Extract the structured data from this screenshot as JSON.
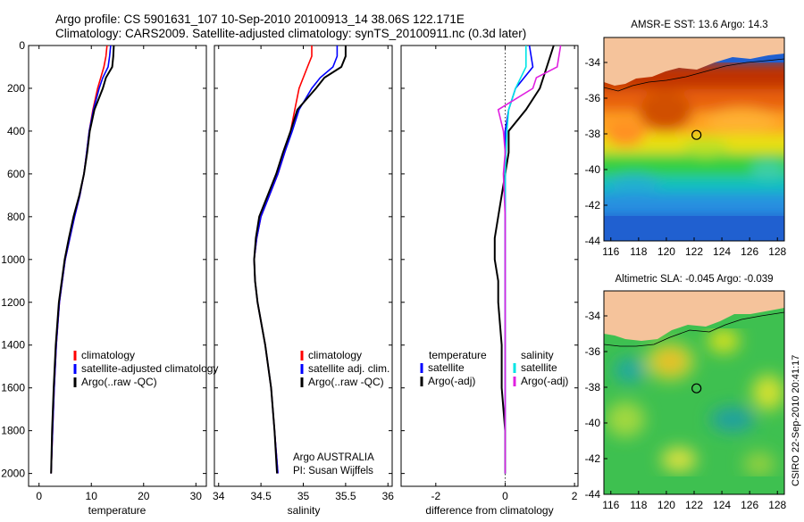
{
  "header": {
    "line1": "Argo profile: CS 5901631_107 10-Sep-2010 20100913_14 38.06S 122.171E",
    "line2": "Climatology: CARS2009. Satellite-adjusted climatology: synTS_20100911.nc (0.3d later)"
  },
  "footer_note": "CSIRO 22-Sep-2010 20:41:17",
  "colors": {
    "climatology": "#ff0000",
    "satellite": "#0000ff",
    "argo": "#000000",
    "satellite_salinity": "#00e5e5",
    "argo_adj_salinity": "#e020e0",
    "land": "#f5c39b"
  },
  "chart_data": [
    {
      "type": "line",
      "panel": "temperature",
      "xlabel": "temperature",
      "x_ticks": [
        0,
        10,
        20,
        30
      ],
      "xlim": [
        -2,
        32
      ],
      "y_ticks": [
        0,
        200,
        400,
        600,
        800,
        1000,
        1200,
        1400,
        1600,
        1800,
        2000
      ],
      "ylim": [
        2060,
        0
      ],
      "legend": [
        "climatology",
        "satellite-adjusted climatology",
        "Argo(..raw -QC)"
      ],
      "series": [
        {
          "name": "climatology",
          "color": "#ff0000",
          "depth": [
            0,
            50,
            100,
            150,
            200,
            300,
            400,
            500,
            600,
            700,
            800,
            900,
            1000,
            1200,
            1400,
            1600,
            1800,
            2000
          ],
          "values": [
            13,
            12.8,
            12.4,
            11.8,
            11.2,
            10.3,
            9.6,
            9.1,
            8.6,
            7.8,
            6.8,
            5.9,
            5.0,
            3.9,
            3.3,
            2.9,
            2.6,
            2.3
          ]
        },
        {
          "name": "satellite-adjusted climatology",
          "color": "#0000ff",
          "depth": [
            0,
            50,
            100,
            150,
            200,
            300,
            400,
            500,
            600,
            700,
            800,
            900,
            1000,
            1200,
            1400,
            1600,
            1800,
            2000
          ],
          "values": [
            13.7,
            13.5,
            13.2,
            12.2,
            11.5,
            10.4,
            9.6,
            9.1,
            8.6,
            7.8,
            6.8,
            5.9,
            5.0,
            3.9,
            3.3,
            2.9,
            2.6,
            2.3
          ]
        },
        {
          "name": "Argo(..raw -QC)",
          "color": "#000000",
          "depth": [
            0,
            50,
            100,
            150,
            200,
            300,
            400,
            500,
            600,
            700,
            800,
            900,
            1000,
            1200,
            1400,
            1600,
            1800,
            2000
          ],
          "values": [
            14.3,
            14.2,
            14.0,
            12.8,
            12.2,
            10.6,
            9.7,
            9.2,
            8.6,
            7.7,
            6.6,
            5.7,
            4.9,
            3.8,
            3.2,
            2.8,
            2.5,
            2.3
          ]
        }
      ]
    },
    {
      "type": "line",
      "panel": "salinity",
      "xlabel": "salinity",
      "x_ticks": [
        34,
        34.5,
        35,
        35.5,
        36
      ],
      "xlim": [
        33.95,
        36.05
      ],
      "ylim": [
        2060,
        0
      ],
      "legend": [
        "climatology",
        "satellite adj. clim.",
        "Argo(..raw -QC)"
      ],
      "annotation": [
        "Argo AUSTRALIA",
        "PI: Susan Wijffels"
      ],
      "series": [
        {
          "name": "climatology",
          "color": "#ff0000",
          "depth": [
            0,
            50,
            100,
            150,
            200,
            300,
            400,
            500,
            600,
            700,
            800,
            900,
            1000,
            1100,
            1200,
            1400,
            1600,
            1800,
            2000
          ],
          "values": [
            35.1,
            35.1,
            35.05,
            35.0,
            34.95,
            34.9,
            34.85,
            34.78,
            34.7,
            34.6,
            34.5,
            34.45,
            34.42,
            34.43,
            34.46,
            34.55,
            34.62,
            34.66,
            34.7
          ]
        },
        {
          "name": "satellite adj. clim.",
          "color": "#0000ff",
          "depth": [
            0,
            50,
            100,
            150,
            200,
            300,
            400,
            500,
            600,
            700,
            800,
            900,
            1000,
            1100,
            1200,
            1400,
            1600,
            1800,
            2000
          ],
          "values": [
            35.4,
            35.4,
            35.35,
            35.2,
            35.1,
            34.95,
            34.87,
            34.78,
            34.7,
            34.6,
            34.5,
            34.45,
            34.42,
            34.43,
            34.46,
            34.55,
            34.62,
            34.66,
            34.7
          ]
        },
        {
          "name": "Argo(..raw -QC)",
          "color": "#000000",
          "depth": [
            0,
            50,
            100,
            150,
            200,
            300,
            400,
            500,
            600,
            700,
            800,
            900,
            1000,
            1100,
            1200,
            1400,
            1600,
            1800,
            2000
          ],
          "values": [
            35.5,
            35.5,
            35.45,
            35.25,
            35.15,
            34.93,
            34.85,
            34.76,
            34.68,
            34.58,
            34.48,
            34.44,
            34.42,
            34.43,
            34.46,
            34.55,
            34.62,
            34.66,
            34.69
          ]
        }
      ]
    },
    {
      "type": "line",
      "panel": "difference",
      "xlabel": "difference from climatology",
      "x_ticks": [
        -2,
        0,
        2
      ],
      "xlim": [
        -3,
        2.1
      ],
      "ylim": [
        2060,
        0
      ],
      "legend_left_title": "temperature",
      "legend_left": [
        "satellite",
        "Argo(-adj)"
      ],
      "legend_right_title": "salinity",
      "legend_right": [
        "satellite",
        "Argo(-adj)"
      ],
      "series": [
        {
          "name": "temperature satellite",
          "color": "#0000ff",
          "depth": [
            0,
            100,
            200,
            300,
            400,
            600,
            800,
            1000,
            1400,
            1800,
            2000
          ],
          "values": [
            0.7,
            0.8,
            0.3,
            0.1,
            0,
            0,
            0,
            0,
            0,
            0,
            0
          ]
        },
        {
          "name": "temperature Argo(-adj)",
          "color": "#000000",
          "depth": [
            0,
            100,
            200,
            300,
            400,
            500,
            600,
            700,
            800,
            900,
            1000,
            1100,
            1200,
            1400,
            1600,
            1800,
            2000
          ],
          "values": [
            1.4,
            1.2,
            1.0,
            0.6,
            0.1,
            0.1,
            0,
            -0.1,
            -0.2,
            -0.3,
            -0.3,
            -0.2,
            -0.2,
            -0.1,
            -0.1,
            0,
            0
          ]
        },
        {
          "name": "salinity satellite",
          "color": "#00e5e5",
          "depth": [
            0,
            100,
            200,
            300,
            400,
            600,
            800,
            1000,
            1400,
            1800,
            2000
          ],
          "values": [
            0.6,
            0.6,
            0.3,
            0.1,
            0.05,
            0,
            0,
            0,
            0,
            0,
            0
          ]
        },
        {
          "name": "salinity Argo(-adj)",
          "color": "#e020e0",
          "depth": [
            0,
            100,
            150,
            200,
            300,
            400,
            500,
            600,
            800,
            1000,
            1400,
            1800,
            2000
          ],
          "values": [
            1.6,
            1.5,
            0.9,
            0.8,
            -0.2,
            -0.05,
            0,
            -0.05,
            0,
            0,
            0,
            0,
            0
          ]
        }
      ]
    },
    {
      "type": "heatmap",
      "panel": "sst-map",
      "title": "AMSR-E SST: 13.6 Argo: 14.3",
      "x_ticks": [
        116,
        118,
        120,
        122,
        124,
        126,
        128
      ],
      "y_ticks": [
        -34,
        -36,
        -38,
        -40,
        -42,
        -44
      ],
      "xlim": [
        115.5,
        128.5
      ],
      "ylim": [
        -44,
        -32.6
      ],
      "marker": {
        "lon": 122.171,
        "lat": -38.06
      }
    },
    {
      "type": "heatmap",
      "panel": "sla-map",
      "title": "Altimetric SLA: -0.045 Argo: -0.039",
      "x_ticks": [
        116,
        118,
        120,
        122,
        124,
        126,
        128
      ],
      "y_ticks": [
        -34,
        -36,
        -38,
        -40,
        -42,
        -44
      ],
      "xlim": [
        115.5,
        128.5
      ],
      "ylim": [
        -44,
        -32.6
      ],
      "marker": {
        "lon": 122.171,
        "lat": -38.06
      }
    }
  ]
}
